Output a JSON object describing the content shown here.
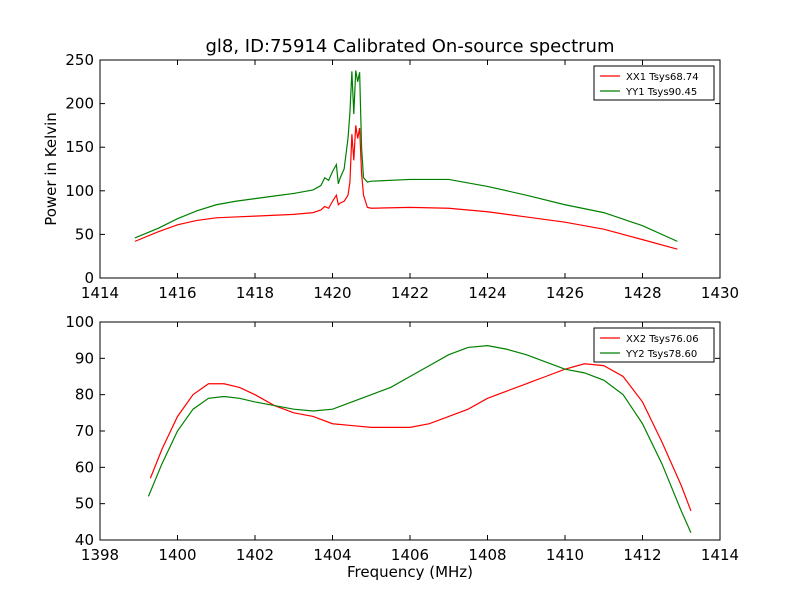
{
  "title": "gl8, ID:75914 Calibrated On-source spectrum",
  "chart_data": [
    {
      "type": "line",
      "title": "gl8, ID:75914 Calibrated On-source spectrum",
      "xlabel": "",
      "ylabel": "Power in Kelvin",
      "xlim": [
        1414,
        1430
      ],
      "ylim": [
        0,
        250
      ],
      "xticks": [
        1414,
        1416,
        1418,
        1420,
        1422,
        1424,
        1426,
        1428,
        1430
      ],
      "yticks": [
        0,
        50,
        100,
        150,
        200,
        250
      ],
      "legend_position": "top-right",
      "grid": false,
      "series": [
        {
          "name": "XX1 Tsys68.74",
          "color": "#ff0000",
          "x": [
            1414.9,
            1415.5,
            1416.0,
            1416.5,
            1417.0,
            1417.5,
            1418.0,
            1418.5,
            1419.0,
            1419.5,
            1419.7,
            1419.8,
            1419.9,
            1420.0,
            1420.1,
            1420.15,
            1420.2,
            1420.3,
            1420.4,
            1420.45,
            1420.5,
            1420.55,
            1420.6,
            1420.65,
            1420.7,
            1420.75,
            1420.8,
            1420.9,
            1421.0,
            1422.0,
            1423.0,
            1424.0,
            1425.0,
            1426.0,
            1427.0,
            1428.0,
            1428.9
          ],
          "y": [
            42,
            53,
            61,
            66,
            69,
            70,
            71,
            72,
            73,
            75,
            78,
            82,
            80,
            88,
            95,
            84,
            86,
            88,
            95,
            110,
            165,
            135,
            175,
            160,
            172,
            120,
            95,
            81,
            80,
            81,
            80,
            76,
            70,
            64,
            56,
            44,
            33
          ]
        },
        {
          "name": "YY1 Tsys90.45",
          "color": "#008000",
          "x": [
            1414.9,
            1415.5,
            1416.0,
            1416.5,
            1417.0,
            1417.5,
            1418.0,
            1418.5,
            1419.0,
            1419.5,
            1419.7,
            1419.8,
            1419.9,
            1420.0,
            1420.1,
            1420.15,
            1420.2,
            1420.3,
            1420.4,
            1420.45,
            1420.5,
            1420.55,
            1420.6,
            1420.65,
            1420.7,
            1420.75,
            1420.8,
            1420.9,
            1421.0,
            1422.0,
            1423.0,
            1424.0,
            1425.0,
            1426.0,
            1427.0,
            1428.0,
            1428.9
          ],
          "y": [
            46,
            57,
            68,
            77,
            84,
            88,
            91,
            94,
            97,
            101,
            106,
            115,
            112,
            122,
            130,
            108,
            115,
            125,
            160,
            190,
            237,
            188,
            238,
            225,
            236,
            150,
            115,
            110,
            111,
            113,
            113,
            105,
            95,
            84,
            75,
            60,
            42
          ]
        }
      ]
    },
    {
      "type": "line",
      "title": "",
      "xlabel": "Frequency (MHz)",
      "ylabel": "",
      "xlim": [
        1398,
        1414
      ],
      "ylim": [
        40,
        100
      ],
      "xticks": [
        1398,
        1400,
        1402,
        1404,
        1406,
        1408,
        1410,
        1412,
        1414
      ],
      "yticks": [
        40,
        50,
        60,
        70,
        80,
        90,
        100
      ],
      "legend_position": "top-right",
      "grid": false,
      "series": [
        {
          "name": "XX2 Tsys76.06",
          "color": "#ff0000",
          "x": [
            1399.3,
            1399.6,
            1400.0,
            1400.4,
            1400.8,
            1401.2,
            1401.6,
            1402.0,
            1402.5,
            1403.0,
            1403.5,
            1404.0,
            1404.5,
            1405.0,
            1405.5,
            1406.0,
            1406.5,
            1407.0,
            1407.5,
            1408.0,
            1408.5,
            1409.0,
            1409.5,
            1410.0,
            1410.5,
            1411.0,
            1411.5,
            1412.0,
            1412.5,
            1413.0,
            1413.25
          ],
          "y": [
            57,
            65,
            74,
            80,
            83,
            83,
            82,
            80,
            77,
            75,
            74,
            72,
            71.5,
            71,
            71,
            71,
            72,
            74,
            76,
            79,
            81,
            83,
            85,
            87,
            88.5,
            88,
            85,
            78,
            67,
            55,
            48
          ]
        },
        {
          "name": "YY2 Tsys78.60",
          "color": "#008000",
          "x": [
            1399.25,
            1399.6,
            1400.0,
            1400.4,
            1400.8,
            1401.2,
            1401.6,
            1402.0,
            1402.5,
            1403.0,
            1403.5,
            1404.0,
            1404.5,
            1405.0,
            1405.5,
            1406.0,
            1406.5,
            1407.0,
            1407.5,
            1408.0,
            1408.5,
            1409.0,
            1409.5,
            1410.0,
            1410.5,
            1411.0,
            1411.5,
            1412.0,
            1412.5,
            1413.0,
            1413.25
          ],
          "y": [
            52,
            61,
            70,
            76,
            79,
            79.5,
            79,
            78,
            77,
            76,
            75.5,
            76,
            78,
            80,
            82,
            85,
            88,
            91,
            93,
            93.5,
            92.5,
            91,
            89,
            87,
            86,
            84,
            80,
            72,
            61,
            48,
            42
          ]
        }
      ]
    }
  ]
}
